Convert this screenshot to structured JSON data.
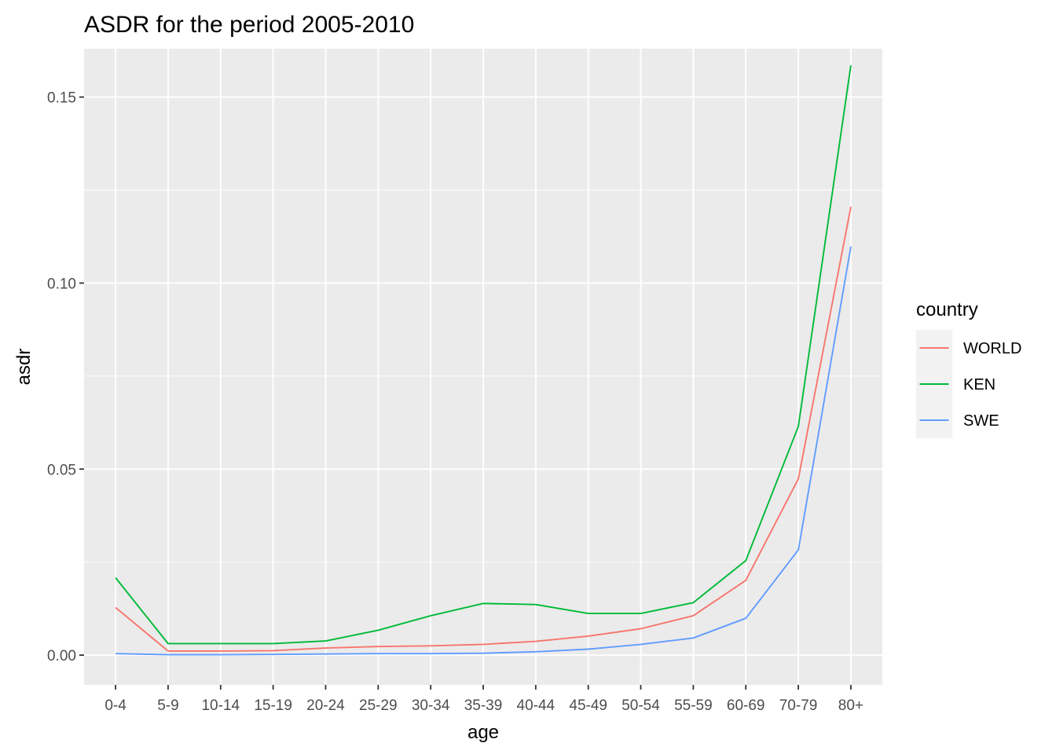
{
  "chart_data": {
    "type": "line",
    "title": "ASDR for the period 2005-2010",
    "xlabel": "age",
    "ylabel": "asdr",
    "categories": [
      "0-4",
      "5-9",
      "10-14",
      "15-19",
      "20-24",
      "25-29",
      "30-34",
      "35-39",
      "40-44",
      "45-49",
      "50-54",
      "55-59",
      "60-69",
      "70-79",
      "80+"
    ],
    "ylim": [
      -0.008,
      0.163
    ],
    "yticks": [
      {
        "value": 0.0,
        "label": "0.00"
      },
      {
        "value": 0.05,
        "label": "0.05"
      },
      {
        "value": 0.1,
        "label": "0.10"
      },
      {
        "value": 0.15,
        "label": "0.15"
      }
    ],
    "yminor": [
      0.025,
      0.075,
      0.125
    ],
    "grid": true,
    "legend": {
      "title": "country",
      "position": "right"
    },
    "series": [
      {
        "name": "WORLD",
        "color": "#F8766D",
        "values": [
          0.0128,
          0.0011,
          0.0011,
          0.0012,
          0.0019,
          0.0023,
          0.0025,
          0.0029,
          0.0037,
          0.0051,
          0.0071,
          0.0106,
          0.0201,
          0.0474,
          0.1205
        ]
      },
      {
        "name": "KEN",
        "color": "#00BA38",
        "values": [
          0.0208,
          0.0031,
          0.0031,
          0.0031,
          0.0038,
          0.0067,
          0.0106,
          0.0139,
          0.0136,
          0.0112,
          0.0112,
          0.0141,
          0.0254,
          0.0615,
          0.1585
        ]
      },
      {
        "name": "SWE",
        "color": "#619CFF",
        "values": [
          0.0004,
          0.0001,
          0.0001,
          0.0002,
          0.0003,
          0.0004,
          0.0004,
          0.0005,
          0.0009,
          0.0016,
          0.0029,
          0.0046,
          0.0099,
          0.0283,
          0.1098
        ]
      }
    ]
  }
}
